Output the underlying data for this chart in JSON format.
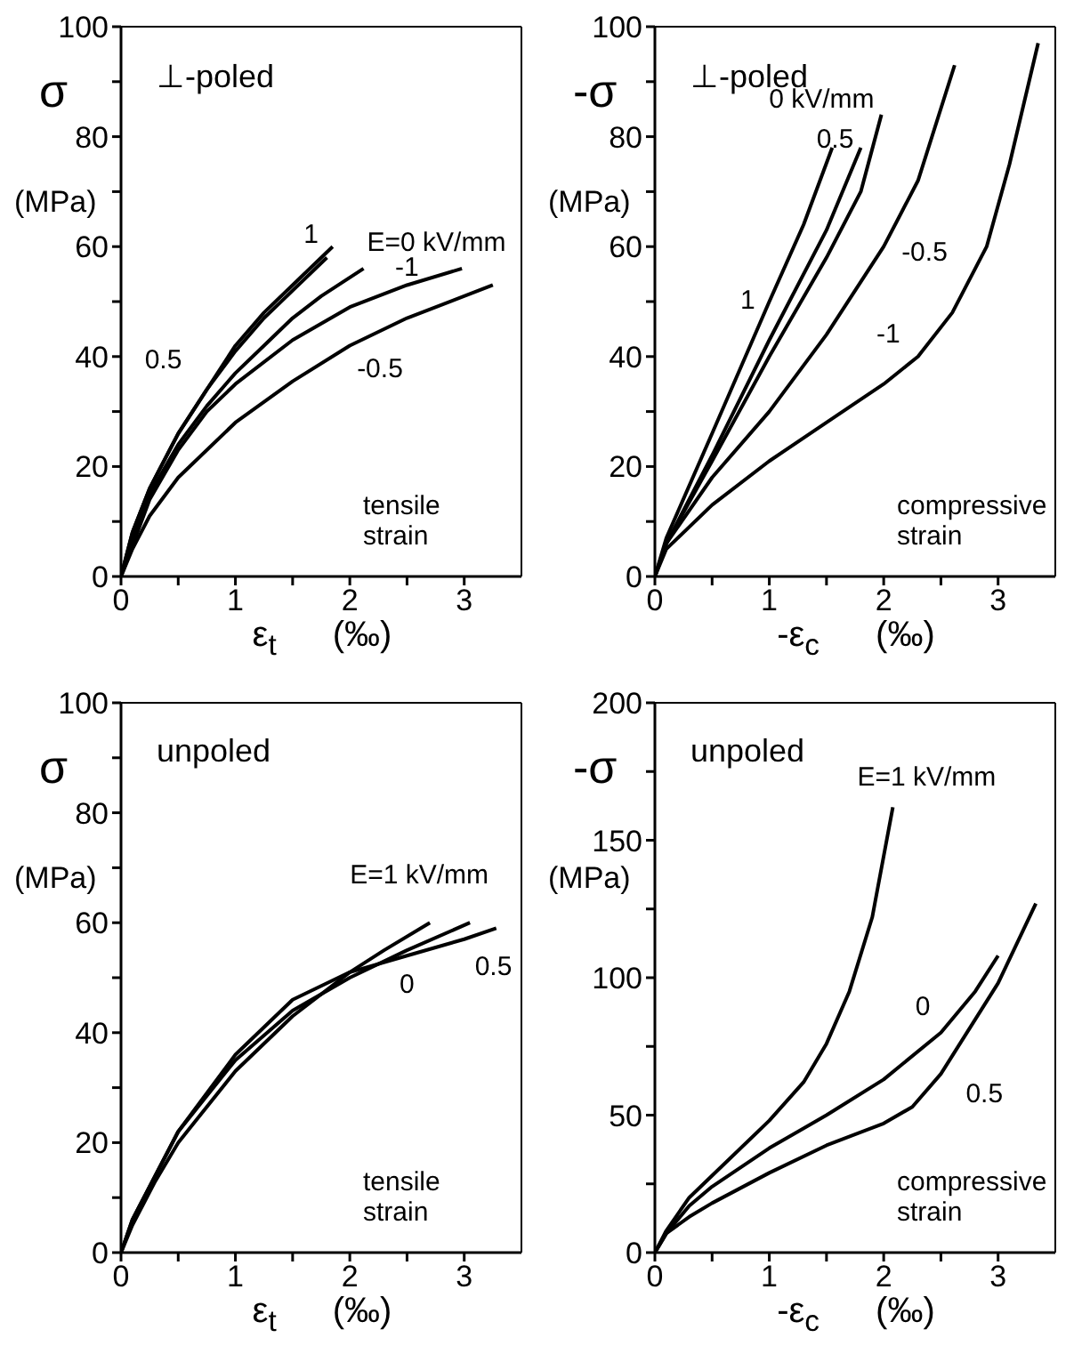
{
  "chart_data": [
    {
      "type": "line",
      "title": "⊥-poled",
      "xlabel": "ε$_{t}$ (‰)",
      "ylabel": "σ (MPa)",
      "annotations": [
        "tensile strain"
      ],
      "xlim": [
        0,
        3.5
      ],
      "xticks": [
        0,
        {
          "value": 0.5,
          "label": null
        },
        1,
        {
          "value": 1.5,
          "label": null
        },
        2,
        {
          "value": 2.5,
          "label": null
        },
        3
      ],
      "ylim": [
        0,
        100
      ],
      "yticks": [
        0,
        {
          "value": 10,
          "label": null
        },
        20,
        {
          "value": 30,
          "label": null
        },
        40,
        {
          "value": 50,
          "label": null
        },
        60,
        {
          "value": 70,
          "label": null
        },
        80,
        {
          "value": 90,
          "label": null
        },
        100
      ],
      "series": [
        {
          "name": "1",
          "color": "#000000",
          "x": [
            0,
            0.1,
            0.25,
            0.5,
            0.75,
            1,
            1.25,
            1.5,
            1.85
          ],
          "values": [
            0,
            8,
            16,
            26,
            34,
            42,
            48,
            53,
            60
          ]
        },
        {
          "name": "0.5",
          "color": "#000000",
          "x": [
            0,
            0.1,
            0.25,
            0.5,
            0.75,
            1,
            1.25,
            1.5,
            1.8
          ],
          "values": [
            0,
            8,
            16,
            26,
            34,
            41,
            47,
            52,
            58
          ]
        },
        {
          "name": "E=0 kV/mm",
          "color": "#000000",
          "x": [
            0,
            0.1,
            0.25,
            0.5,
            0.75,
            1,
            1.25,
            1.5,
            1.75,
            2.12
          ],
          "values": [
            0,
            7,
            15,
            24,
            31,
            37,
            42,
            47,
            51,
            56
          ]
        },
        {
          "name": "-1",
          "color": "#000000",
          "x": [
            0,
            0.25,
            0.5,
            0.75,
            1,
            1.5,
            2,
            2.5,
            2.98
          ],
          "values": [
            0,
            14,
            23,
            30,
            35,
            43,
            49,
            53,
            56
          ]
        },
        {
          "name": "-0.5",
          "color": "#000000",
          "x": [
            0,
            0.1,
            0.25,
            0.5,
            1,
            1.5,
            2,
            2.5,
            3.25
          ],
          "values": [
            0,
            5,
            11,
            18,
            28,
            35.5,
            42,
            47,
            53
          ]
        }
      ]
    },
    {
      "type": "line",
      "title": "⊥-poled",
      "xlabel": "-ε$_{c}$ (‰)",
      "ylabel": "-σ (MPa)",
      "annotations": [
        "compressive strain"
      ],
      "xlim": [
        0,
        3.5
      ],
      "xticks": [
        0,
        {
          "value": 0.5,
          "label": null
        },
        1,
        {
          "value": 1.5,
          "label": null
        },
        2,
        {
          "value": 2.5,
          "label": null
        },
        3
      ],
      "ylim": [
        0,
        100
      ],
      "yticks": [
        0,
        {
          "value": 10,
          "label": null
        },
        20,
        {
          "value": 30,
          "label": null
        },
        40,
        {
          "value": 50,
          "label": null
        },
        60,
        {
          "value": 70,
          "label": null
        },
        80,
        {
          "value": 90,
          "label": null
        },
        100
      ],
      "series": [
        {
          "name": "1",
          "color": "#000000",
          "x": [
            0,
            0.1,
            0.5,
            1,
            1.3,
            1.55
          ],
          "values": [
            0,
            7,
            26,
            50,
            64,
            78
          ]
        },
        {
          "name": "0.5",
          "color": "#000000",
          "x": [
            0,
            0.1,
            0.5,
            1,
            1.5,
            1.8
          ],
          "values": [
            0,
            6,
            22,
            43,
            63,
            78
          ]
        },
        {
          "name": "0 kV/mm",
          "color": "#000000",
          "x": [
            0,
            0.1,
            0.5,
            1,
            1.5,
            1.8,
            1.98
          ],
          "values": [
            0,
            6,
            21,
            40,
            58,
            70,
            84
          ]
        },
        {
          "name": "-0.5",
          "color": "#000000",
          "x": [
            0,
            0.1,
            0.5,
            1,
            1.5,
            2,
            2.3,
            2.62
          ],
          "values": [
            0,
            6,
            18,
            30,
            44,
            60,
            72,
            93
          ]
        },
        {
          "name": "-1",
          "color": "#000000",
          "x": [
            0,
            0.1,
            0.5,
            1,
            1.5,
            2,
            2.3,
            2.6,
            2.9,
            3.1,
            3.35
          ],
          "values": [
            0,
            5,
            13,
            21,
            28,
            35,
            40,
            48,
            60,
            75,
            97
          ]
        }
      ]
    },
    {
      "type": "line",
      "title": "unpoled",
      "xlabel": "ε$_{t}$ (‰)",
      "ylabel": "σ (MPa)",
      "annotations": [
        "tensile strain"
      ],
      "xlim": [
        0,
        3.5
      ],
      "xticks": [
        0,
        {
          "value": 0.5,
          "label": null
        },
        1,
        {
          "value": 1.5,
          "label": null
        },
        2,
        {
          "value": 2.5,
          "label": null
        },
        3
      ],
      "ylim": [
        0,
        100
      ],
      "yticks": [
        0,
        {
          "value": 10,
          "label": null
        },
        20,
        {
          "value": 30,
          "label": null
        },
        40,
        {
          "value": 50,
          "label": null
        },
        60,
        {
          "value": 70,
          "label": null
        },
        80,
        {
          "value": 90,
          "label": null
        },
        100
      ],
      "series": [
        {
          "name": "E=1 kV/mm",
          "color": "#000000",
          "x": [
            0,
            0.1,
            0.3,
            0.5,
            1,
            1.5,
            2,
            2.3,
            2.7
          ],
          "values": [
            0,
            5,
            13,
            20,
            33,
            43,
            51,
            55,
            60
          ]
        },
        {
          "name": "0",
          "color": "#000000",
          "x": [
            0,
            0.1,
            0.3,
            0.5,
            1,
            1.5,
            2,
            2.5,
            3.05
          ],
          "values": [
            0,
            6,
            14,
            22,
            35,
            44,
            50,
            55,
            60
          ]
        },
        {
          "name": "0.5",
          "color": "#000000",
          "x": [
            0,
            0.1,
            0.3,
            0.5,
            1,
            1.5,
            2,
            2.5,
            3,
            3.28
          ],
          "values": [
            0,
            6,
            14,
            22,
            36,
            46,
            51,
            54,
            57,
            59
          ]
        }
      ]
    },
    {
      "type": "line",
      "title": "unpoled",
      "xlabel": "-ε$_{c}$ (‰)",
      "ylabel": "-σ (MPa)",
      "annotations": [
        "compressive strain"
      ],
      "xlim": [
        0,
        3.5
      ],
      "xticks": [
        0,
        {
          "value": 0.5,
          "label": null
        },
        1,
        {
          "value": 1.5,
          "label": null
        },
        2,
        {
          "value": 2.5,
          "label": null
        },
        3
      ],
      "ylim": [
        0,
        200
      ],
      "yticks": [
        0,
        {
          "value": 25,
          "label": null
        },
        50,
        {
          "value": 75,
          "label": null
        },
        100,
        {
          "value": 125,
          "label": null
        },
        150,
        {
          "value": 175,
          "label": null
        },
        200
      ],
      "series": [
        {
          "name": "E=1 kV/mm",
          "color": "#000000",
          "x": [
            0,
            0.1,
            0.3,
            0.5,
            1,
            1.3,
            1.5,
            1.7,
            1.9,
            2.08
          ],
          "values": [
            0,
            8,
            20,
            28,
            48,
            62,
            76,
            95,
            122,
            162
          ]
        },
        {
          "name": "0",
          "color": "#000000",
          "x": [
            0,
            0.1,
            0.3,
            0.5,
            1,
            1.5,
            2,
            2.5,
            2.8,
            3
          ],
          "values": [
            0,
            7,
            17,
            24,
            38,
            50,
            63,
            80,
            95,
            108
          ]
        },
        {
          "name": "0.5",
          "color": "#000000",
          "x": [
            0,
            0.1,
            0.3,
            0.5,
            1,
            1.5,
            2,
            2.25,
            2.5,
            3,
            3.33
          ],
          "values": [
            0,
            7,
            13,
            18,
            29,
            39,
            47,
            53,
            65,
            98,
            127
          ]
        }
      ]
    }
  ]
}
